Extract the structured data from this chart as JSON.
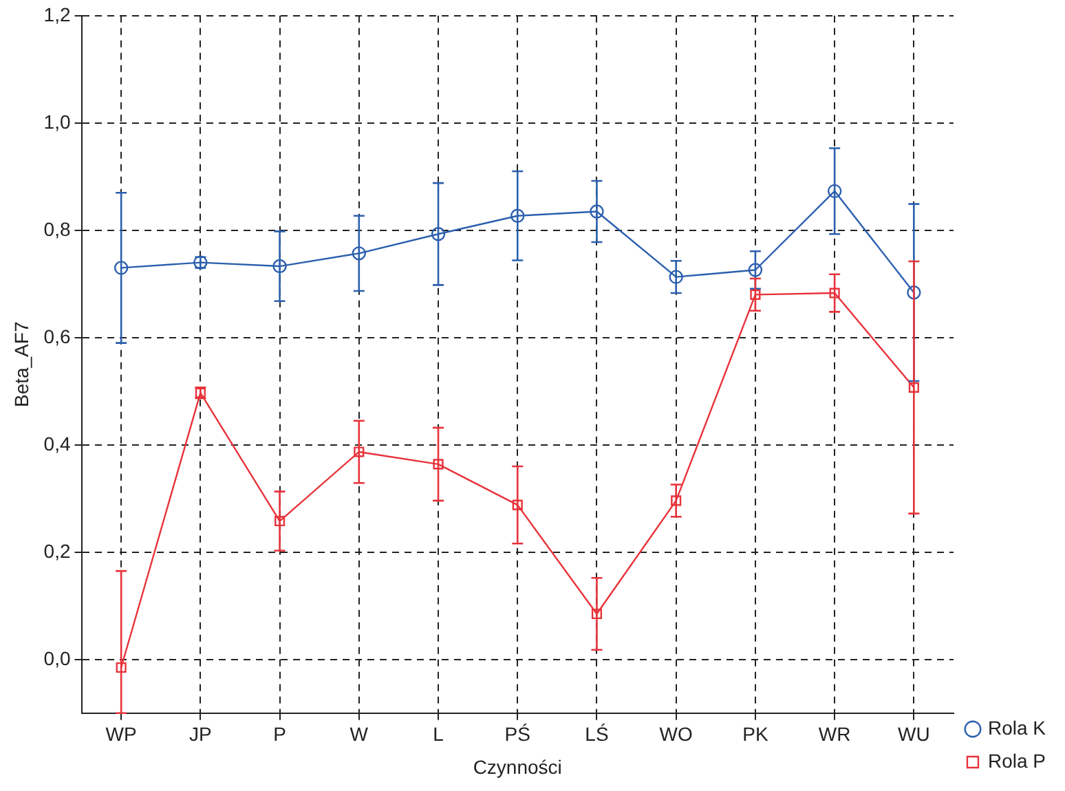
{
  "chart_data": {
    "type": "line",
    "xlabel": "Czynności",
    "ylabel": "Beta_AF7",
    "categories": [
      "WP",
      "JP",
      "P",
      "W",
      "L",
      "PŚ",
      "LŚ",
      "WO",
      "PK",
      "WR",
      "WU"
    ],
    "ylim": [
      -0.1,
      1.2
    ],
    "yticks": [
      {
        "value": 0,
        "label": "0,0"
      },
      {
        "value": 0.2,
        "label": "0,2"
      },
      {
        "value": 0.4,
        "label": "0,4"
      },
      {
        "value": 0.6,
        "label": "0,6"
      },
      {
        "value": 0.8,
        "label": "0,8"
      },
      {
        "value": 1,
        "label": "1,0"
      },
      {
        "value": 1.2,
        "label": "1,2"
      }
    ],
    "grid": true,
    "legend": "bottom right",
    "line_style": "solid",
    "series": [
      {
        "name": "Rola K",
        "color": "#2b5fae",
        "marker": "circle",
        "values": [
          0.73,
          0.74,
          0.733,
          0.757,
          0.793,
          0.827,
          0.835,
          0.713,
          0.726,
          0.873,
          0.684
        ],
        "errors": [
          0.14,
          0.01,
          0.065,
          0.07,
          0.095,
          0.083,
          0.057,
          0.03,
          0.035,
          0.08,
          0.165
        ]
      },
      {
        "name": "Rola P",
        "color": "#e8323a",
        "marker": "square",
        "values": [
          -0.015,
          0.497,
          0.258,
          0.387,
          0.364,
          0.288,
          0.085,
          0.296,
          0.68,
          0.683,
          0.507
        ],
        "errors": [
          [
            -0.1,
            0.165
          ],
          0.01,
          0.055,
          0.058,
          0.068,
          0.072,
          0.067,
          0.03,
          0.03,
          0.035,
          0.235
        ]
      }
    ]
  }
}
